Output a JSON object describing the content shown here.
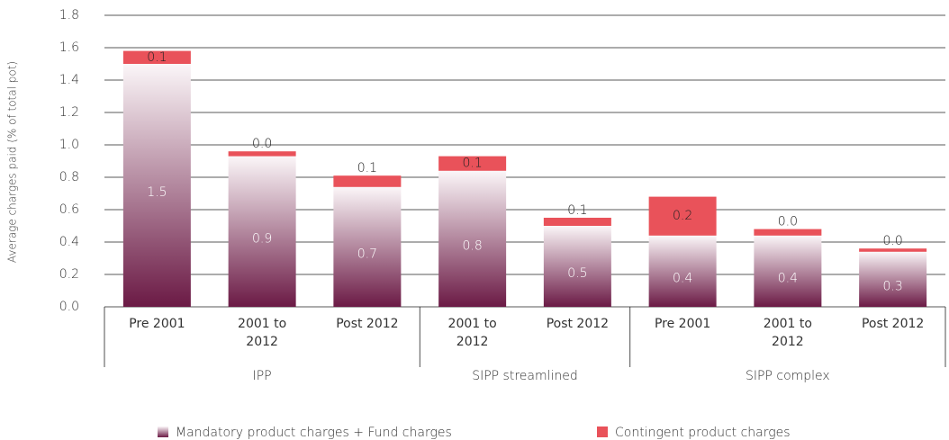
{
  "chart_data": {
    "type": "stacked-bar",
    "y_label": "Average charges paid (% of total pot)",
    "groups": [
      {
        "name": "IPP",
        "categories": [
          "Pre 2001",
          "2001 to 2012",
          "Post 2012"
        ]
      },
      {
        "name": "SIPP streamlined",
        "categories": [
          "2001 to 2012",
          "Post 2012"
        ]
      },
      {
        "name": "SIPP complex",
        "categories": [
          "Pre 2001",
          "2001 to 2012",
          "Post 2012"
        ]
      }
    ],
    "series": [
      {
        "name": "Mandatory product charges + Fund charges",
        "color": "#6b1a45",
        "values": [
          1.5,
          0.93,
          0.74,
          0.84,
          0.5,
          0.44,
          0.44,
          0.34
        ],
        "value_labels": [
          "1.5",
          "0.9",
          "0.7",
          "0.8",
          "0.5",
          "0.4",
          "0.4",
          "0.3"
        ]
      },
      {
        "name": "Contingent product charges",
        "color": "#e9525a",
        "values": [
          0.08,
          0.03,
          0.07,
          0.09,
          0.05,
          0.24,
          0.04,
          0.02
        ],
        "value_labels": [
          "0.1",
          "0.0",
          "0.1",
          "0.1",
          "0.1",
          "0.2",
          "0.0",
          "0.0"
        ]
      }
    ],
    "ylim": [
      0,
      1.8
    ],
    "yticks": [
      {
        "value": 0,
        "label": "0.0"
      },
      0.2,
      0.4,
      0.6,
      0.8,
      {
        "value": 1,
        "label": "1.0"
      },
      1.2,
      1.4,
      1.6,
      1.8
    ],
    "grid": true
  }
}
